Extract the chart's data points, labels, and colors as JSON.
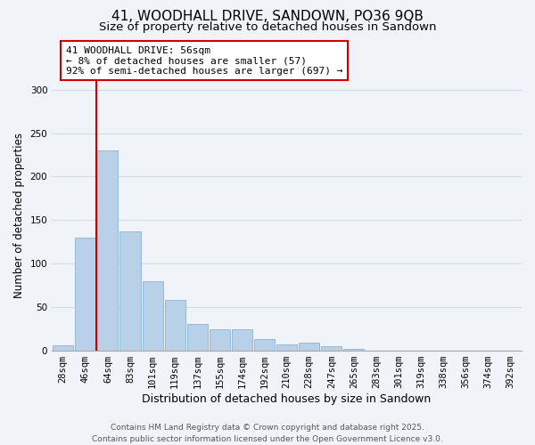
{
  "title": "41, WOODHALL DRIVE, SANDOWN, PO36 9QB",
  "subtitle": "Size of property relative to detached houses in Sandown",
  "xlabel": "Distribution of detached houses by size in Sandown",
  "ylabel": "Number of detached properties",
  "bar_labels": [
    "28sqm",
    "46sqm",
    "64sqm",
    "83sqm",
    "101sqm",
    "119sqm",
    "137sqm",
    "155sqm",
    "174sqm",
    "192sqm",
    "210sqm",
    "228sqm",
    "247sqm",
    "265sqm",
    "283sqm",
    "301sqm",
    "319sqm",
    "338sqm",
    "356sqm",
    "374sqm",
    "392sqm"
  ],
  "bar_values": [
    6,
    130,
    230,
    137,
    80,
    58,
    31,
    25,
    25,
    13,
    7,
    9,
    5,
    2,
    0,
    0,
    0,
    0,
    0,
    0,
    0
  ],
  "bar_color": "#b8d0e8",
  "bar_edge_color": "#8ab4d4",
  "grid_color": "#d0dce8",
  "background_color": "#f0f4f8",
  "vline_x": 1.5,
  "vline_color": "#cc0000",
  "annotation_line1": "41 WOODHALL DRIVE: 56sqm",
  "annotation_line2": "← 8% of detached houses are smaller (57)",
  "annotation_line3": "92% of semi-detached houses are larger (697) →",
  "annotation_box_color": "#ffffff",
  "annotation_box_edge": "#cc0000",
  "ylim": [
    0,
    310
  ],
  "yticks": [
    0,
    50,
    100,
    150,
    200,
    250,
    300
  ],
  "footer_line1": "Contains HM Land Registry data © Crown copyright and database right 2025.",
  "footer_line2": "Contains public sector information licensed under the Open Government Licence v3.0.",
  "title_fontsize": 11,
  "subtitle_fontsize": 9.5,
  "xlabel_fontsize": 9,
  "ylabel_fontsize": 8.5,
  "tick_fontsize": 7.5,
  "annotation_fontsize": 8,
  "footer_fontsize": 6.5
}
